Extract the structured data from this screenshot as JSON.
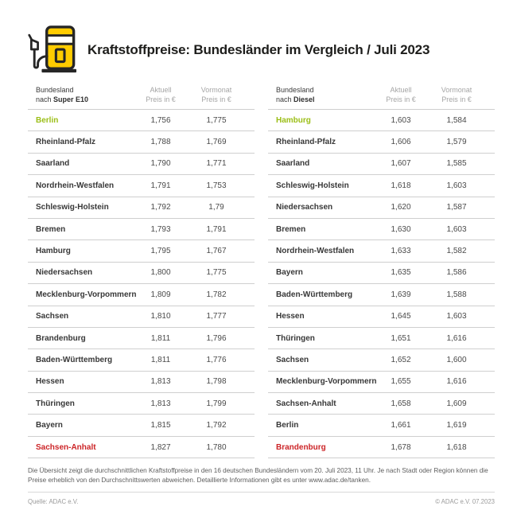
{
  "header": {
    "title": "Kraftstoffpreise: Bundesländer im Vergleich / Juli 2023"
  },
  "chart_data": [
    {
      "type": "table",
      "fuel": "Super E10",
      "head": {
        "col1_line1": "Bundesland",
        "col1_prefix": "nach ",
        "col1_bold": "Super E10",
        "col2_line1": "Aktuell",
        "col2_line2": "Preis in €",
        "col3_line1": "Vormonat",
        "col3_line2": "Preis in €"
      },
      "rows": [
        {
          "name": "Berlin",
          "aktuell": "1,756",
          "vormonat": "1,775",
          "highlight": "cheapest"
        },
        {
          "name": "Rheinland-Pfalz",
          "aktuell": "1,788",
          "vormonat": "1,769",
          "highlight": null
        },
        {
          "name": "Saarland",
          "aktuell": "1,790",
          "vormonat": "1,771",
          "highlight": null
        },
        {
          "name": "Nordrhein-Westfalen",
          "aktuell": "1,791",
          "vormonat": "1,753",
          "highlight": null
        },
        {
          "name": "Schleswig-Holstein",
          "aktuell": "1,792",
          "vormonat": "1,79",
          "highlight": null
        },
        {
          "name": "Bremen",
          "aktuell": "1,793",
          "vormonat": "1,791",
          "highlight": null
        },
        {
          "name": "Hamburg",
          "aktuell": "1,795",
          "vormonat": "1,767",
          "highlight": null
        },
        {
          "name": "Niedersachsen",
          "aktuell": "1,800",
          "vormonat": "1,775",
          "highlight": null
        },
        {
          "name": "Mecklenburg-Vorpommern",
          "aktuell": "1,809",
          "vormonat": "1,782",
          "highlight": null
        },
        {
          "name": "Sachsen",
          "aktuell": "1,810",
          "vormonat": "1,777",
          "highlight": null
        },
        {
          "name": "Brandenburg",
          "aktuell": "1,811",
          "vormonat": "1,796",
          "highlight": null
        },
        {
          "name": "Baden-Württemberg",
          "aktuell": "1,811",
          "vormonat": "1,776",
          "highlight": null
        },
        {
          "name": "Hessen",
          "aktuell": "1,813",
          "vormonat": "1,798",
          "highlight": null
        },
        {
          "name": "Thüringen",
          "aktuell": "1,813",
          "vormonat": "1,799",
          "highlight": null
        },
        {
          "name": "Bayern",
          "aktuell": "1,815",
          "vormonat": "1,792",
          "highlight": null
        },
        {
          "name": "Sachsen-Anhalt",
          "aktuell": "1,827",
          "vormonat": "1,780",
          "highlight": "most_expensive"
        }
      ]
    },
    {
      "type": "table",
      "fuel": "Diesel",
      "head": {
        "col1_line1": "Bundesland",
        "col1_prefix": "nach ",
        "col1_bold": "Diesel",
        "col2_line1": "Aktuell",
        "col2_line2": "Preis in €",
        "col3_line1": "Vormonat",
        "col3_line2": "Preis in €"
      },
      "rows": [
        {
          "name": "Hamburg",
          "aktuell": "1,603",
          "vormonat": "1,584",
          "highlight": "cheapest"
        },
        {
          "name": "Rheinland-Pfalz",
          "aktuell": "1,606",
          "vormonat": "1,579",
          "highlight": null
        },
        {
          "name": "Saarland",
          "aktuell": "1,607",
          "vormonat": "1,585",
          "highlight": null
        },
        {
          "name": "Schleswig-Holstein",
          "aktuell": "1,618",
          "vormonat": "1,603",
          "highlight": null
        },
        {
          "name": "Niedersachsen",
          "aktuell": "1,620",
          "vormonat": "1,587",
          "highlight": null
        },
        {
          "name": "Bremen",
          "aktuell": "1,630",
          "vormonat": "1,603",
          "highlight": null
        },
        {
          "name": "Nordrhein-Westfalen",
          "aktuell": "1,633",
          "vormonat": "1,582",
          "highlight": null
        },
        {
          "name": "Bayern",
          "aktuell": "1,635",
          "vormonat": "1,586",
          "highlight": null
        },
        {
          "name": "Baden-Württemberg",
          "aktuell": "1,639",
          "vormonat": "1,588",
          "highlight": null
        },
        {
          "name": "Hessen",
          "aktuell": "1,645",
          "vormonat": "1,603",
          "highlight": null
        },
        {
          "name": "Thüringen",
          "aktuell": "1,651",
          "vormonat": "1,616",
          "highlight": null
        },
        {
          "name": "Sachsen",
          "aktuell": "1,652",
          "vormonat": "1,600",
          "highlight": null
        },
        {
          "name": "Mecklenburg-Vorpommern",
          "aktuell": "1,655",
          "vormonat": "1,616",
          "highlight": null
        },
        {
          "name": "Sachsen-Anhalt",
          "aktuell": "1,658",
          "vormonat": "1,609",
          "highlight": null
        },
        {
          "name": "Berlin",
          "aktuell": "1,661",
          "vormonat": "1,619",
          "highlight": null
        },
        {
          "name": "Brandenburg",
          "aktuell": "1,678",
          "vormonat": "1,618",
          "highlight": "most_expensive"
        }
      ]
    }
  ],
  "footnote": {
    "line1": "Die Übersicht zeigt die durchschnittlichen Kraftstoffpreise in den 16 deutschen Bundesländern vom 20. Juli 2023, 11 Uhr. Je nach Stadt oder Region können die",
    "line2": "Preise erheblich von den Durchschnittswerten abweichen. Detaillierte Informationen gibt es unter www.adac.de/tanken."
  },
  "source": "Quelle: ADAC e.V.",
  "copyright": "© ADAC e.V. 07.2023",
  "colors": {
    "brand_yellow": "#FFCC00",
    "outline_dark": "#262626",
    "cheapest_green": "#9BBE16",
    "most_expensive_red": "#CC2427",
    "row_divider": "#CFCFCF"
  }
}
